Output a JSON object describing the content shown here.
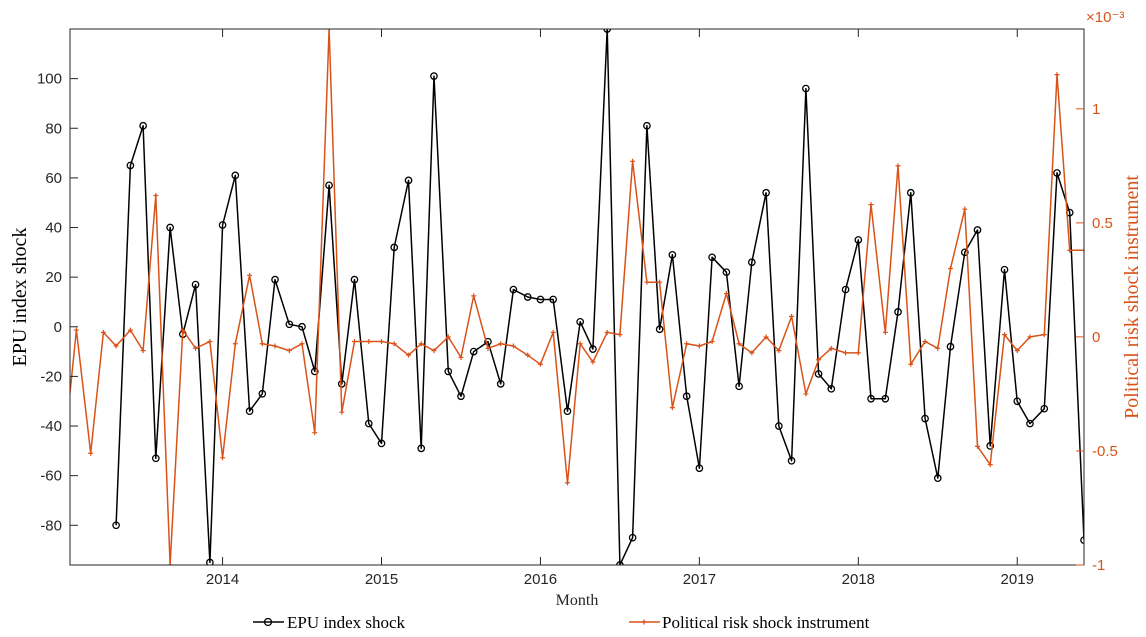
{
  "chart_data": {
    "type": "line",
    "xlabel": "Month",
    "ylabel_left": "EPU index shock",
    "ylabel_right": "Political risk shock instrument",
    "right_exponent_label": "×10⁻³",
    "x_ticks": [
      {
        "value": 2014.0,
        "label": "2014"
      },
      {
        "value": 2015.0,
        "label": "2015"
      },
      {
        "value": 2016.0,
        "label": "2016"
      },
      {
        "value": 2017.0,
        "label": "2017"
      },
      {
        "value": 2018.0,
        "label": "2018"
      },
      {
        "value": 2019.0,
        "label": "2019"
      }
    ],
    "xlim": [
      2013.04,
      2019.42
    ],
    "ylim_left": [
      -96,
      120
    ],
    "ylim_right": [
      -1.0,
      1.35
    ],
    "left_ticks": [
      -80,
      -60,
      -40,
      -20,
      0,
      20,
      40,
      60,
      80,
      100
    ],
    "right_ticks": [
      {
        "value": -1.0,
        "label": "-1"
      },
      {
        "value": -0.5,
        "label": "-0.5"
      },
      {
        "value": 0.0,
        "label": "0"
      },
      {
        "value": 0.5,
        "label": "0.5"
      },
      {
        "value": 1.0,
        "label": "1"
      }
    ],
    "legend": {
      "placement": "bottom",
      "items": [
        "EPU index shock",
        "Political risk shock instrument"
      ]
    },
    "colors": {
      "epu": "#000000",
      "instrument": "#D95319"
    },
    "series": [
      {
        "name": "EPU index shock",
        "axis": "left",
        "x": [
          2013.33,
          2013.42,
          2013.5,
          2013.58,
          2013.67,
          2013.75,
          2013.83,
          2013.92,
          2014.0,
          2014.08,
          2014.17,
          2014.25,
          2014.33,
          2014.42,
          2014.5,
          2014.58,
          2014.67,
          2014.75,
          2014.83,
          2014.92,
          2015.0,
          2015.08,
          2015.17,
          2015.25,
          2015.33,
          2015.42,
          2015.5,
          2015.58,
          2015.67,
          2015.75,
          2015.83,
          2015.92,
          2016.0,
          2016.08,
          2016.17,
          2016.25,
          2016.33,
          2016.42,
          2016.5,
          2016.58,
          2016.67,
          2016.75,
          2016.83,
          2016.92,
          2017.0,
          2017.08,
          2017.17,
          2017.25,
          2017.33,
          2017.42,
          2017.5,
          2017.58,
          2017.67,
          2017.75,
          2017.83,
          2017.92,
          2018.0,
          2018.08,
          2018.17,
          2018.25,
          2018.33,
          2018.42,
          2018.5,
          2018.58,
          2018.67,
          2018.75,
          2018.83,
          2018.92,
          2019.0,
          2019.08,
          2019.17,
          2019.25,
          2019.33,
          2019.42
        ],
        "values": [
          -80,
          65,
          81,
          -53,
          40,
          -3,
          17,
          -95,
          41,
          61,
          -34,
          -27,
          19,
          1,
          0,
          -18,
          57,
          -23,
          19,
          -39,
          -47,
          32,
          59,
          -49,
          101,
          -18,
          -28,
          -10,
          -6,
          -23,
          15,
          12,
          11,
          11,
          -34,
          2,
          -9,
          120,
          -96,
          -85,
          81,
          -1,
          29,
          -28,
          -57,
          28,
          22,
          -24,
          26,
          54,
          -40,
          -54,
          96,
          -19,
          -25,
          15,
          35,
          -29,
          -29,
          6,
          54,
          -37,
          -61,
          -8,
          30,
          39,
          -48,
          23,
          -30,
          -39,
          -33,
          62,
          46,
          -86
        ]
      },
      {
        "name": "Political risk shock instrument",
        "axis": "right",
        "x": [
          2013.0,
          2013.08,
          2013.17,
          2013.25,
          2013.33,
          2013.42,
          2013.5,
          2013.58,
          2013.67,
          2013.75,
          2013.83,
          2013.92,
          2014.0,
          2014.08,
          2014.17,
          2014.25,
          2014.33,
          2014.42,
          2014.5,
          2014.58,
          2014.67,
          2014.75,
          2014.83,
          2014.92,
          2015.0,
          2015.08,
          2015.17,
          2015.25,
          2015.33,
          2015.42,
          2015.5,
          2015.58,
          2015.67,
          2015.75,
          2015.83,
          2015.92,
          2016.0,
          2016.08,
          2016.17,
          2016.25,
          2016.33,
          2016.42,
          2016.5,
          2016.58,
          2016.67,
          2016.75,
          2016.83,
          2016.92,
          2017.0,
          2017.08,
          2017.17,
          2017.25,
          2017.33,
          2017.42,
          2017.5,
          2017.58,
          2017.67,
          2017.75,
          2017.83,
          2017.92,
          2018.0,
          2018.08,
          2018.17,
          2018.25,
          2018.33,
          2018.42,
          2018.5,
          2018.58,
          2018.67,
          2018.75,
          2018.83,
          2018.92,
          2019.0,
          2019.08,
          2019.17,
          2019.25,
          2019.33,
          2019.42
        ],
        "values": [
          -0.52,
          0.03,
          -0.51,
          0.02,
          -0.04,
          0.03,
          -0.06,
          0.62,
          -1.0,
          0.03,
          -0.05,
          -0.02,
          -0.53,
          -0.03,
          0.27,
          -0.03,
          -0.04,
          -0.06,
          -0.03,
          -0.42,
          1.35,
          -0.33,
          -0.02,
          -0.02,
          -0.02,
          -0.03,
          -0.08,
          -0.03,
          -0.06,
          0.0,
          -0.09,
          0.18,
          -0.05,
          -0.03,
          -0.04,
          -0.08,
          -0.12,
          0.02,
          -0.64,
          -0.03,
          -0.11,
          0.02,
          0.01,
          0.77,
          0.24,
          0.24,
          -0.31,
          -0.03,
          -0.04,
          -0.02,
          0.19,
          -0.03,
          -0.07,
          0.0,
          -0.06,
          0.09,
          -0.25,
          -0.1,
          -0.05,
          -0.07,
          -0.07,
          0.58,
          0.02,
          0.75,
          -0.12,
          -0.02,
          -0.05,
          0.3,
          0.56,
          -0.48,
          -0.56,
          0.01,
          -0.06,
          0.0,
          0.01,
          1.15,
          0.38,
          0.38
        ]
      }
    ]
  }
}
